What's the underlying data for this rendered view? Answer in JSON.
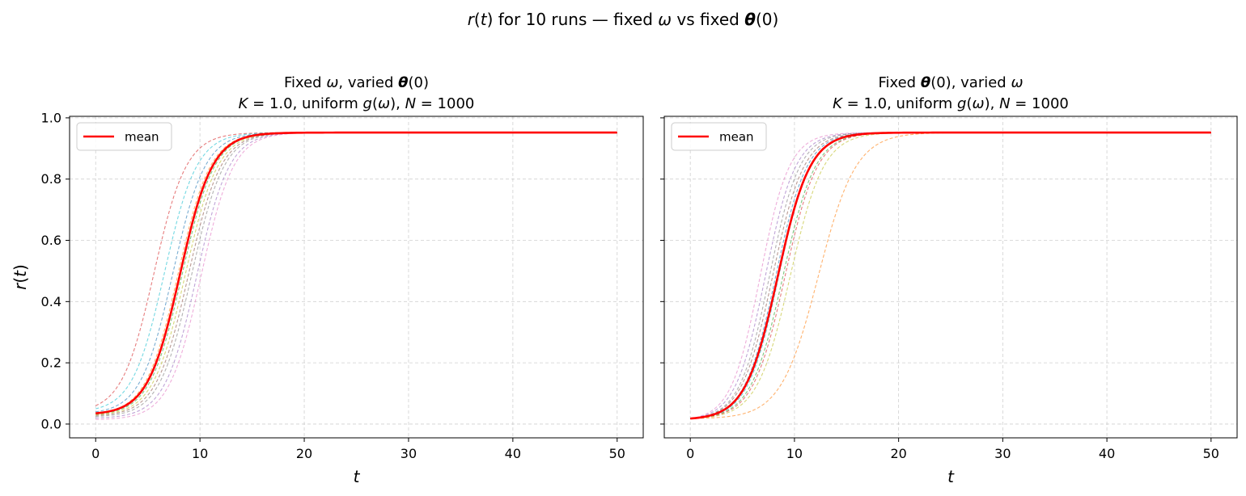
{
  "figure": {
    "suptitle": "r(t) for 10 runs — fixed ω vs fixed θ(0)"
  },
  "chart_data": [
    {
      "type": "line",
      "title_line1": "Fixed ω, varied θ(0)",
      "title_line2": "K = 1.0, uniform g(ω), N = 1000",
      "xlabel": "t",
      "ylabel": "r(t)",
      "xlim": [
        -2.5,
        52.5
      ],
      "ylim": [
        -0.045,
        1.005
      ],
      "xticks": [
        0,
        10,
        20,
        30,
        40,
        50
      ],
      "yticks": [
        0.0,
        0.2,
        0.4,
        0.6,
        0.8,
        1.0
      ],
      "grid": true,
      "legend": {
        "placement": "top-left",
        "entries": [
          "mean"
        ]
      },
      "mean": {
        "name": "mean",
        "color": "#ff0000",
        "r0": 0.035,
        "rmax": 0.952,
        "t_half": 8.1,
        "tau": 1.55,
        "t_end": 50
      },
      "runs": [
        {
          "color": "#d62728",
          "r0": 0.06,
          "rmax": 0.952,
          "t_half": 5.6,
          "tau": 1.55
        },
        {
          "color": "#17becf",
          "r0": 0.05,
          "rmax": 0.952,
          "t_half": 6.6,
          "tau": 1.55
        },
        {
          "color": "#1f77b4",
          "r0": 0.04,
          "rmax": 0.952,
          "t_half": 7.4,
          "tau": 1.55
        },
        {
          "color": "#ff7f0e",
          "r0": 0.035,
          "rmax": 0.952,
          "t_half": 7.9,
          "tau": 1.55
        },
        {
          "color": "#2ca02c",
          "r0": 0.032,
          "rmax": 0.952,
          "t_half": 8.3,
          "tau": 1.55
        },
        {
          "color": "#bcbd22",
          "r0": 0.03,
          "rmax": 0.952,
          "t_half": 8.6,
          "tau": 1.55
        },
        {
          "color": "#8c564b",
          "r0": 0.028,
          "rmax": 0.952,
          "t_half": 8.9,
          "tau": 1.55
        },
        {
          "color": "#7f7f7f",
          "r0": 0.025,
          "rmax": 0.952,
          "t_half": 9.2,
          "tau": 1.55
        },
        {
          "color": "#9467bd",
          "r0": 0.02,
          "rmax": 0.952,
          "t_half": 9.7,
          "tau": 1.55
        },
        {
          "color": "#e377c2",
          "r0": 0.015,
          "rmax": 0.952,
          "t_half": 10.1,
          "tau": 1.55
        }
      ]
    },
    {
      "type": "line",
      "title_line1": "Fixed θ(0), varied ω",
      "title_line2": "K = 1.0, uniform g(ω), N = 1000",
      "xlabel": "t",
      "ylabel": "",
      "xlim": [
        -2.5,
        52.5
      ],
      "ylim": [
        -0.045,
        1.005
      ],
      "xticks": [
        0,
        10,
        20,
        30,
        40,
        50
      ],
      "yticks": [
        0.0,
        0.2,
        0.4,
        0.6,
        0.8,
        1.0
      ],
      "grid": true,
      "legend": {
        "placement": "top-left",
        "entries": [
          "mean"
        ]
      },
      "mean": {
        "name": "mean",
        "color": "#ff0000",
        "r0": 0.018,
        "rmax": 0.952,
        "t_half": 8.4,
        "tau": 1.55,
        "t_end": 50
      },
      "runs": [
        {
          "color": "#e377c2",
          "r0": 0.018,
          "rmax": 0.952,
          "t_half": 6.7,
          "tau": 1.4
        },
        {
          "color": "#9467bd",
          "r0": 0.018,
          "rmax": 0.952,
          "t_half": 7.2,
          "tau": 1.45
        },
        {
          "color": "#7f7f7f",
          "r0": 0.018,
          "rmax": 0.952,
          "t_half": 7.6,
          "tau": 1.45
        },
        {
          "color": "#8c564b",
          "r0": 0.018,
          "rmax": 0.952,
          "t_half": 7.9,
          "tau": 1.5
        },
        {
          "color": "#1f77b4",
          "r0": 0.018,
          "rmax": 0.952,
          "t_half": 8.2,
          "tau": 1.5
        },
        {
          "color": "#17becf",
          "r0": 0.018,
          "rmax": 0.952,
          "t_half": 8.5,
          "tau": 1.5
        },
        {
          "color": "#2ca02c",
          "r0": 0.018,
          "rmax": 0.952,
          "t_half": 8.9,
          "tau": 1.55
        },
        {
          "color": "#d62728",
          "r0": 0.018,
          "rmax": 0.952,
          "t_half": 9.1,
          "tau": 1.55
        },
        {
          "color": "#bcbd22",
          "r0": 0.018,
          "rmax": 0.952,
          "t_half": 9.6,
          "tau": 1.6
        },
        {
          "color": "#ff7f0e",
          "r0": 0.018,
          "rmax": 0.952,
          "t_half": 12.3,
          "tau": 1.8
        }
      ]
    }
  ]
}
